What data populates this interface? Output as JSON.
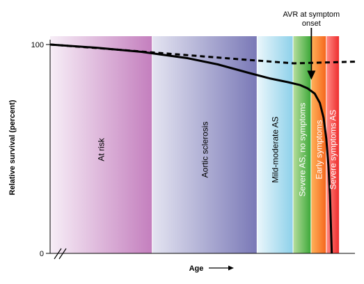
{
  "chart_data": {
    "type": "line",
    "title": "",
    "xlabel": "Age",
    "ylabel": "Relative survival (percent)",
    "ylim": [
      0,
      100
    ],
    "y_ticks": [
      {
        "value": 100,
        "label": "100"
      },
      {
        "value": 0,
        "label": "0"
      }
    ],
    "x_axis_break": true,
    "x_arrow": true,
    "grid": false,
    "regions": [
      {
        "label": "At risk",
        "from": 0.0,
        "to": 0.336,
        "color_light": "#f7eef7",
        "color_dark": "#c47fbe",
        "text_color": "#000000"
      },
      {
        "label": "Aortic sclerosis",
        "from": 0.336,
        "to": 0.68,
        "color_light": "#e4e4f1",
        "color_dark": "#7a79b7",
        "text_color": "#000000"
      },
      {
        "label": "Mild-moderate AS",
        "from": 0.68,
        "to": 0.798,
        "color_light": "#eaf6fb",
        "color_dark": "#8ed1ea",
        "text_color": "#000000"
      },
      {
        "label": "Severe AS, no symptoms",
        "from": 0.798,
        "to": 0.857,
        "color_light": "#b6dd9c",
        "color_dark": "#3ea93a",
        "text_color": "#ffffff"
      },
      {
        "label": "Early symptoms",
        "from": 0.857,
        "to": 0.907,
        "color_light": "#ffb259",
        "color_dark": "#f5661d",
        "text_color": "#ffffff"
      },
      {
        "label": "Severe symptoms AS",
        "from": 0.907,
        "to": 0.95,
        "color_light": "#ff8a84",
        "color_dark": "#ee2d2d",
        "text_color": "#ffffff"
      }
    ],
    "series": [
      {
        "style": "solid",
        "x": [
          0.0,
          0.15,
          0.3,
          0.45,
          0.55,
          0.65,
          0.72,
          0.78,
          0.82,
          0.845,
          0.868,
          0.885,
          0.897,
          0.906,
          0.913,
          0.918,
          0.921,
          0.924
        ],
        "y": [
          100,
          98.5,
          96.5,
          93.5,
          90.5,
          86.5,
          83.8,
          82.0,
          80.6,
          79.0,
          76.5,
          72.0,
          65.0,
          55.0,
          42.0,
          28.0,
          14.0,
          0.0
        ]
      },
      {
        "style": "dashed",
        "x": [
          0.0,
          0.2,
          0.4,
          0.6,
          0.8,
          1.0
        ],
        "y": [
          100,
          97.8,
          95.5,
          93.2,
          91.0,
          91.8
        ]
      }
    ],
    "annotations": [
      {
        "lines": [
          "AVR at symptom",
          "onset"
        ],
        "arrow_to": {
          "x": 0.857,
          "y": 83.5
        }
      }
    ]
  }
}
